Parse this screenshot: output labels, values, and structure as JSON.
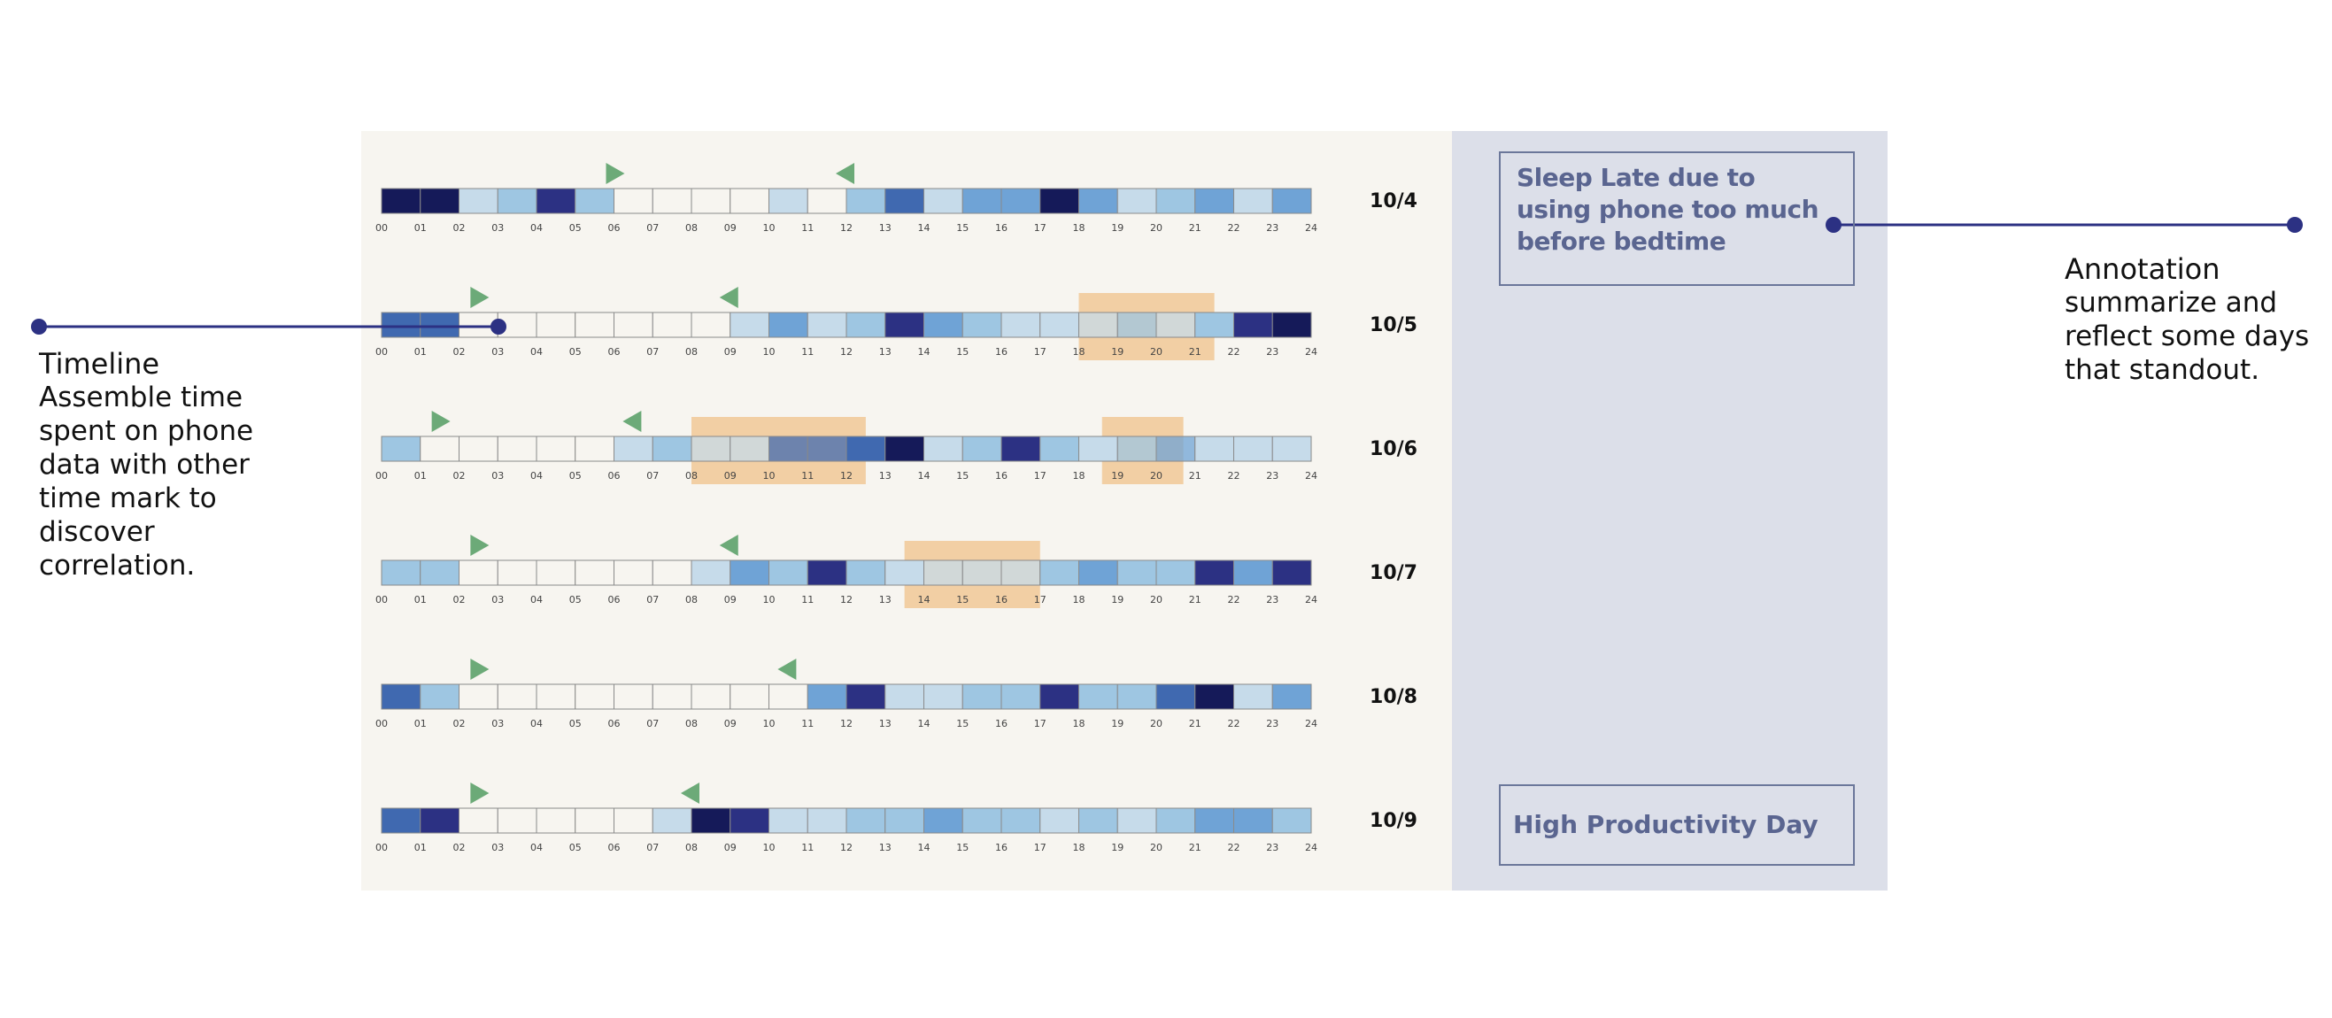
{
  "palette": {
    "0": "#f7f5f0",
    "1": "#c6dbea",
    "2": "#9ec6e2",
    "3": "#6fa3d6",
    "4": "#4069b0",
    "5": "#2c3183",
    "6": "#151a59"
  },
  "marker_color": "#6caa78",
  "highlight_color": "#f1c896",
  "line_color": "#2c3183",
  "chart_data": {
    "type": "heatmap",
    "x_tick_labels": [
      "00",
      "01",
      "02",
      "03",
      "04",
      "05",
      "06",
      "07",
      "08",
      "09",
      "10",
      "11",
      "12",
      "13",
      "14",
      "15",
      "16",
      "17",
      "18",
      "19",
      "20",
      "21",
      "22",
      "23",
      "24"
    ],
    "days": [
      {
        "label": "10/4",
        "hour_levels": [
          6,
          6,
          1,
          2,
          5,
          2,
          0,
          0,
          0,
          0,
          1,
          0,
          2,
          4,
          1,
          3,
          3,
          6,
          3,
          1,
          2,
          3,
          1,
          3
        ],
        "sleep_marker_hour": 6,
        "wake_marker_hour": 12,
        "highlights": []
      },
      {
        "label": "10/5",
        "hour_levels": [
          4,
          4,
          0,
          0,
          0,
          0,
          0,
          0,
          0,
          1,
          3,
          1,
          2,
          5,
          3,
          2,
          1,
          1,
          1,
          2,
          1,
          2,
          5,
          6
        ],
        "sleep_marker_hour": 2.5,
        "wake_marker_hour": 9,
        "highlights": [
          [
            18,
            21.5
          ]
        ]
      },
      {
        "label": "10/6",
        "hour_levels": [
          2,
          0,
          0,
          0,
          0,
          0,
          1,
          2,
          1,
          1,
          4,
          4,
          4,
          6,
          1,
          2,
          5,
          2,
          1,
          2,
          3,
          1,
          1,
          1
        ],
        "sleep_marker_hour": 1.5,
        "wake_marker_hour": 6.5,
        "highlights": [
          [
            8,
            12.5
          ],
          [
            18.6,
            20.7
          ]
        ]
      },
      {
        "label": "10/7",
        "hour_levels": [
          2,
          2,
          0,
          0,
          0,
          0,
          0,
          0,
          1,
          3,
          2,
          5,
          2,
          1,
          1,
          1,
          1,
          2,
          3,
          2,
          2,
          5,
          3,
          5
        ],
        "sleep_marker_hour": 2.5,
        "wake_marker_hour": 9,
        "highlights": [
          [
            13.5,
            17
          ]
        ]
      },
      {
        "label": "10/8",
        "hour_levels": [
          4,
          2,
          0,
          0,
          0,
          0,
          0,
          0,
          0,
          0,
          0,
          3,
          5,
          1,
          1,
          2,
          2,
          5,
          2,
          2,
          4,
          6,
          1,
          3
        ],
        "sleep_marker_hour": 2.5,
        "wake_marker_hour": 10.5,
        "highlights": []
      },
      {
        "label": "10/9",
        "hour_levels": [
          4,
          5,
          0,
          0,
          0,
          0,
          0,
          1,
          6,
          5,
          1,
          1,
          2,
          2,
          3,
          2,
          2,
          1,
          2,
          1,
          2,
          3,
          3,
          2
        ],
        "sleep_marker_hour": 2.5,
        "wake_marker_hour": 8,
        "highlights": []
      }
    ]
  },
  "annotations": {
    "sleep_late": "Sleep Late due to using phone too much before bedtime",
    "high_productivity": "High Productivity Day"
  },
  "callouts": {
    "timeline": {
      "title": "Timeline",
      "body": "Assemble time spent on phone data with other time mark to discover correlation."
    },
    "annotation": {
      "title": "Annotation",
      "body": "summarize and reflect some days that standout."
    }
  }
}
